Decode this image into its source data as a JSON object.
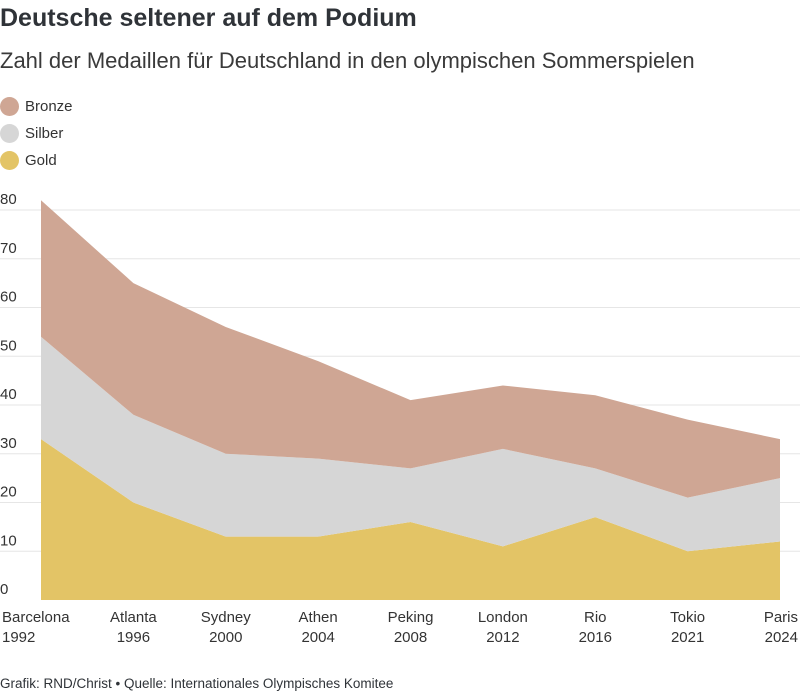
{
  "title": "Deutsche seltener auf dem Podium",
  "subtitle": "Zahl der Medaillen für Deutschland in den olympischen Sommerspielen",
  "footer": "Grafik: RND/Christ • Quelle: Internationales Olympisches Komitee",
  "legend": [
    {
      "label": "Bronze",
      "color": "#cfa694"
    },
    {
      "label": "Silber",
      "color": "#d6d6d6"
    },
    {
      "label": "Gold",
      "color": "#e3c466"
    }
  ],
  "chart_data": {
    "type": "area",
    "stacked": true,
    "categories": [
      [
        "Barcelona",
        "1992"
      ],
      [
        "Atlanta",
        "1996"
      ],
      [
        "Sydney",
        "2000"
      ],
      [
        "Athen",
        "2004"
      ],
      [
        "Peking",
        "2008"
      ],
      [
        "London",
        "2012"
      ],
      [
        "Rio",
        "2016"
      ],
      [
        "Tokio",
        "2021"
      ],
      [
        "Paris",
        "2024"
      ]
    ],
    "series": [
      {
        "name": "Gold",
        "color": "#e3c466",
        "values": [
          33,
          20,
          13,
          13,
          16,
          11,
          17,
          10,
          12
        ]
      },
      {
        "name": "Silber",
        "color": "#d6d6d6",
        "values": [
          21,
          18,
          17,
          16,
          11,
          20,
          10,
          11,
          13
        ]
      },
      {
        "name": "Bronze",
        "color": "#cfa694",
        "values": [
          28,
          27,
          26,
          20,
          14,
          13,
          15,
          16,
          8
        ]
      }
    ],
    "ylim": [
      0,
      80
    ],
    "yticks": [
      0,
      10,
      20,
      30,
      40,
      50,
      60,
      70,
      80
    ],
    "grid": true,
    "legend_position": "top-left"
  }
}
